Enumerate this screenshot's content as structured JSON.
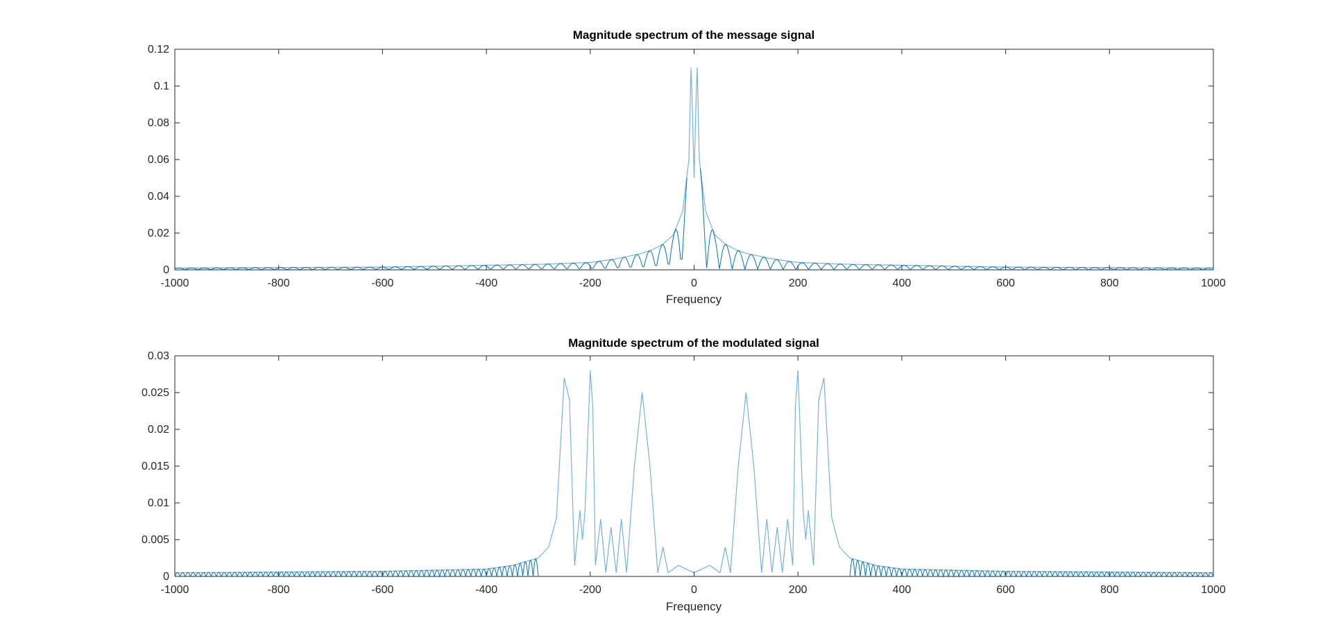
{
  "colors": {
    "line": "#0072BD",
    "axes": "#262626",
    "background": "#ffffff"
  },
  "chart_data": [
    {
      "type": "line",
      "title": "Magnitude spectrum of the message signal",
      "xlabel": "Frequency",
      "ylabel": "",
      "xlim": [
        -1000,
        1000
      ],
      "ylim": [
        0,
        0.12
      ],
      "xticks": [
        -1000,
        -800,
        -600,
        -400,
        -200,
        0,
        200,
        400,
        600,
        800,
        1000
      ],
      "xtick_labels": [
        "-1000",
        "-800",
        "-600",
        "-400",
        "-200",
        "0",
        "200",
        "400",
        "600",
        "800",
        "1000"
      ],
      "yticks": [
        0,
        0.02,
        0.04,
        0.06,
        0.08,
        0.1,
        0.12
      ],
      "ytick_labels": [
        "0",
        "0.02",
        "0.04",
        "0.06",
        "0.08",
        "0.1",
        "0.12"
      ],
      "grid": false,
      "series": [
        {
          "x": [
            -1000,
            -600,
            -400,
            -300,
            -200,
            -150,
            -100,
            -80,
            -60,
            -40,
            -22,
            -10,
            -6,
            -4,
            0,
            4,
            6,
            10,
            22,
            40,
            60,
            80,
            100,
            150,
            200,
            300,
            400,
            600,
            1000
          ],
          "y": [
            0.001,
            0.0015,
            0.0025,
            0.003,
            0.004,
            0.006,
            0.009,
            0.011,
            0.014,
            0.019,
            0.032,
            0.06,
            0.11,
            0.095,
            0.05,
            0.095,
            0.11,
            0.06,
            0.032,
            0.019,
            0.014,
            0.011,
            0.009,
            0.006,
            0.004,
            0.003,
            0.0025,
            0.0015,
            0.001
          ]
        }
      ]
    },
    {
      "type": "line",
      "title": "Magnitude spectrum of the modulated signal",
      "xlabel": "Frequency",
      "ylabel": "",
      "xlim": [
        -1000,
        1000
      ],
      "ylim": [
        0,
        0.03
      ],
      "xticks": [
        -1000,
        -800,
        -600,
        -400,
        -200,
        0,
        200,
        400,
        600,
        800,
        1000
      ],
      "xtick_labels": [
        "-1000",
        "-800",
        "-600",
        "-400",
        "-200",
        "0",
        "200",
        "400",
        "600",
        "800",
        "1000"
      ],
      "yticks": [
        0,
        0.005,
        0.01,
        0.015,
        0.02,
        0.025,
        0.03
      ],
      "ytick_labels": [
        "0",
        "0.005",
        "0.01",
        "0.015",
        "0.02",
        "0.025",
        "0.03"
      ],
      "grid": false,
      "series": [
        {
          "x": [
            -1000,
            -600,
            -400,
            -350,
            -300,
            -280,
            -265,
            -250,
            -240,
            -230,
            -220,
            -215,
            -210,
            -200,
            -195,
            -190,
            -180,
            -170,
            -160,
            -150,
            -140,
            -130,
            -115,
            -100,
            -85,
            -70,
            -60,
            -50,
            -30,
            0,
            30,
            50,
            60,
            70,
            85,
            100,
            115,
            130,
            140,
            150,
            160,
            170,
            180,
            190,
            195,
            200,
            210,
            215,
            220,
            230,
            240,
            250,
            265,
            280,
            300,
            350,
            400,
            600,
            1000
          ],
          "y": [
            0.0005,
            0.0007,
            0.001,
            0.0015,
            0.0025,
            0.004,
            0.008,
            0.027,
            0.024,
            0.0015,
            0.009,
            0.005,
            0.009,
            0.028,
            0.023,
            0.0015,
            0.0078,
            0.0005,
            0.0067,
            0.0005,
            0.0078,
            0.0005,
            0.015,
            0.025,
            0.015,
            0.0005,
            0.004,
            0.0005,
            0.0015,
            0.0005,
            0.0015,
            0.0005,
            0.004,
            0.0005,
            0.015,
            0.025,
            0.015,
            0.0005,
            0.0078,
            0.0005,
            0.0067,
            0.0005,
            0.0078,
            0.0015,
            0.023,
            0.028,
            0.009,
            0.005,
            0.009,
            0.0015,
            0.024,
            0.027,
            0.008,
            0.004,
            0.0025,
            0.0015,
            0.001,
            0.0007,
            0.0005
          ]
        }
      ]
    }
  ]
}
